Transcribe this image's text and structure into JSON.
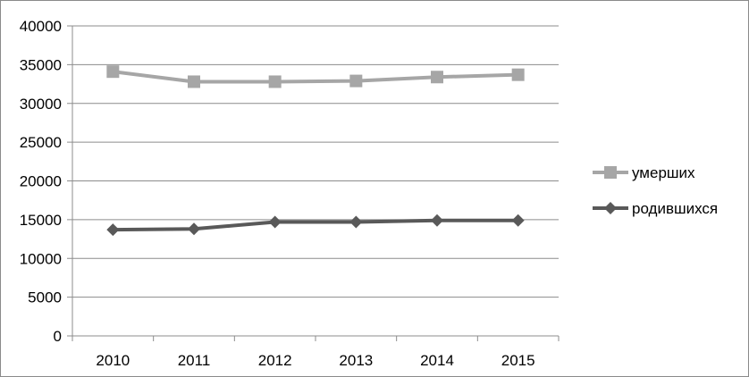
{
  "chart_data": {
    "type": "line",
    "title": "",
    "xlabel": "",
    "ylabel": "",
    "categories": [
      "2010",
      "2011",
      "2012",
      "2013",
      "2014",
      "2015"
    ],
    "ylim": [
      0,
      40000
    ],
    "y_ticks": [
      "0",
      "5000",
      "10000",
      "15000",
      "20000",
      "25000",
      "30000",
      "35000",
      "40000"
    ],
    "grid": "horizontal",
    "legend_position": "right",
    "series": [
      {
        "name": "умерших",
        "values": [
          34100,
          32800,
          32800,
          32900,
          33400,
          33700
        ],
        "color": "#a6a6a6",
        "marker": "square"
      },
      {
        "name": "родившихся",
        "values": [
          13700,
          13800,
          14700,
          14700,
          14900,
          14900
        ],
        "color": "#595959",
        "marker": "diamond"
      }
    ]
  }
}
